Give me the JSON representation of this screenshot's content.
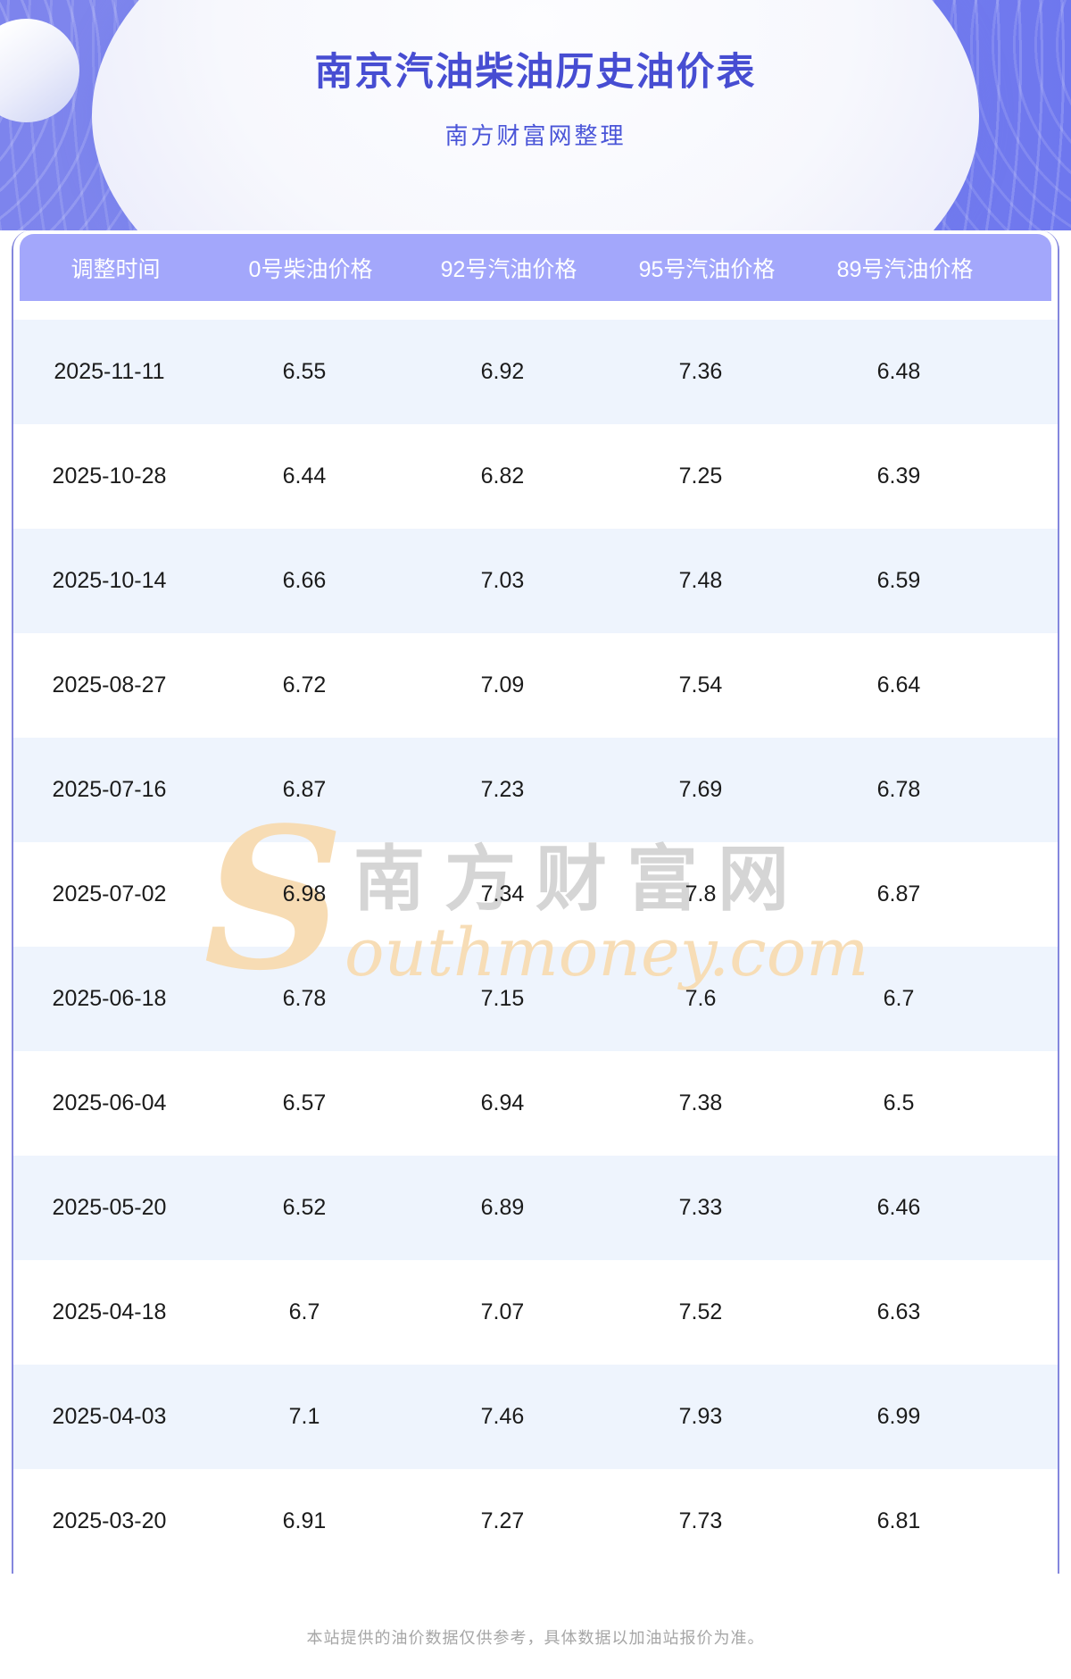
{
  "page": {
    "title": "南京汽油柴油历史油价表",
    "subtitle": "南方财富网整理",
    "footer": "本站提供的油价数据仅供参考，具体数据以加油站报价为准。"
  },
  "watermark": {
    "initial": "S",
    "cn": "南方财富网",
    "en": "outhmoney.com"
  },
  "colors": {
    "banner_left": "#7d84ed",
    "banner_right": "#6e77ee",
    "title_text": "#474dd2",
    "subtitle_text": "#4a55d8",
    "header_bar": "#8487dd",
    "header_row": "#a3a7fb",
    "row_alt": "#eef4fd",
    "cell_text": "#1b1b1b",
    "watermark_orange": "#f7dcb4",
    "footer_text": "#a6a6a6"
  },
  "table": {
    "columns": [
      "调整时间",
      "0号柴油价格",
      "92号汽油价格",
      "95号汽油价格",
      "89号汽油价格"
    ],
    "rows": [
      [
        "2025-11-11",
        "6.55",
        "6.92",
        "7.36",
        "6.48"
      ],
      [
        "2025-10-28",
        "6.44",
        "6.82",
        "7.25",
        "6.39"
      ],
      [
        "2025-10-14",
        "6.66",
        "7.03",
        "7.48",
        "6.59"
      ],
      [
        "2025-08-27",
        "6.72",
        "7.09",
        "7.54",
        "6.64"
      ],
      [
        "2025-07-16",
        "6.87",
        "7.23",
        "7.69",
        "6.78"
      ],
      [
        "2025-07-02",
        "6.98",
        "7.34",
        "7.8",
        "6.87"
      ],
      [
        "2025-06-18",
        "6.78",
        "7.15",
        "7.6",
        "6.7"
      ],
      [
        "2025-06-04",
        "6.57",
        "6.94",
        "7.38",
        "6.5"
      ],
      [
        "2025-05-20",
        "6.52",
        "6.89",
        "7.33",
        "6.46"
      ],
      [
        "2025-04-18",
        "6.7",
        "7.07",
        "7.52",
        "6.63"
      ],
      [
        "2025-04-03",
        "7.1",
        "7.46",
        "7.93",
        "6.99"
      ],
      [
        "2025-03-20",
        "6.91",
        "7.27",
        "7.73",
        "6.81"
      ]
    ]
  }
}
